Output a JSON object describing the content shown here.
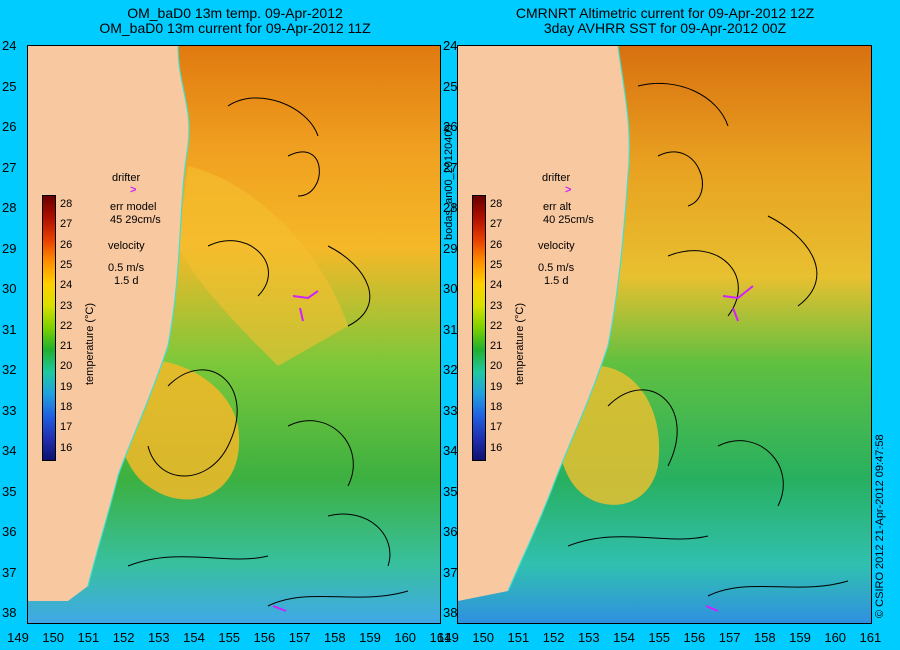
{
  "left_panel": {
    "title_line1": "OM_baD0 13m temp. 09-Apr-2012",
    "title_line2": "OM_baD0 13m current for 09-Apr-2012 11Z",
    "drifter_label": "drifter",
    "err_label": "err model",
    "err_value": "45 29cm/s",
    "velocity_label": "velocity",
    "velocity_scale": "0.5 m/s",
    "velocity_days": "1.5 d"
  },
  "right_panel": {
    "title_line1": "CMRNRT Altimetric current for 09-Apr-2012 12Z",
    "title_line2": "3day AVHRR SST for 09-Apr-2012 00Z",
    "drifter_label": "drifter",
    "err_label": "err alt",
    "err_value": "40 25cm/s",
    "velocity_label": "velocity",
    "velocity_scale": "0.5 m/s",
    "velocity_days": "1.5 d"
  },
  "middle_label": "bodas_an00_20120409",
  "right_edge_label": "© CSIRO 2012   21-Apr-2012 09:47:58",
  "colorbar": {
    "label": "temperature (°C)",
    "ticks": [
      "28",
      "27",
      "26",
      "25",
      "24",
      "23",
      "22",
      "21",
      "20",
      "19",
      "18",
      "17",
      "16"
    ],
    "colors": [
      "#6a0000",
      "#b01000",
      "#e84000",
      "#ff9000",
      "#ffd000",
      "#d8e000",
      "#7cd000",
      "#20b030",
      "#20c8a0",
      "#20a0e0",
      "#2060e0",
      "#2030b0",
      "#101070"
    ]
  },
  "y_ticks": [
    "24",
    "25",
    "26",
    "27",
    "28",
    "29",
    "30",
    "31",
    "32",
    "33",
    "34",
    "35",
    "36",
    "37",
    "38"
  ],
  "x_ticks": [
    "149",
    "150",
    "151",
    "152",
    "153",
    "154",
    "155",
    "156",
    "157",
    "158",
    "159",
    "160",
    "161"
  ],
  "colors": {
    "background": "#00ccff",
    "land": "#f8c8a0",
    "drifter": "#d020ff"
  }
}
